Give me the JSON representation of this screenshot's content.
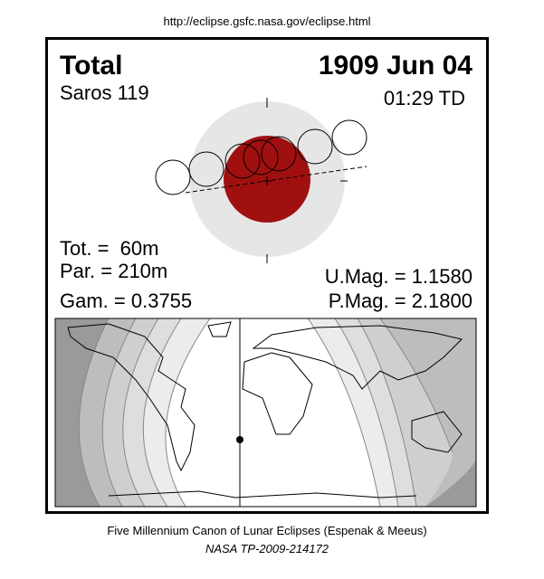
{
  "header": {
    "url": "http://eclipse.gsfc.nasa.gov/eclipse.html"
  },
  "eclipse": {
    "type": "Total",
    "date": "1909 Jun 04",
    "saros": "Saros 119",
    "time": "01:29 TD",
    "totality": "Tot. =  60m",
    "partial": "Par. = 210m",
    "gamma": "Gam. = 0.3755",
    "umbral_magnitude": "U.Mag. = 1.1580",
    "penumbral_magnitude": "P.Mag. = 2.1800"
  },
  "footer": {
    "title": "Five Millennium Canon of Lunar Eclipses (Espenak & Meeus)",
    "reference": "NASA TP-2009-214172"
  }
}
